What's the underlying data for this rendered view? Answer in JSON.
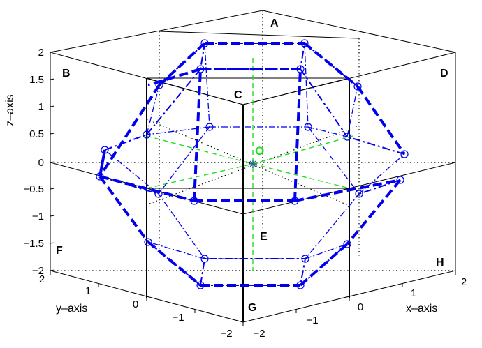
{
  "figure": {
    "axes": {
      "xlabel": "x–axis",
      "ylabel": "y–axis",
      "zlabel": "z–axis",
      "xticks": [
        "−2",
        "−1",
        "0",
        "1",
        "2"
      ],
      "yticks": [
        "−2",
        "−1",
        "0",
        "1",
        "2"
      ],
      "zticks": [
        "−2",
        "−1.5",
        "−1",
        "−0.5",
        "0",
        "0.5",
        "1",
        "1.5",
        "2"
      ]
    },
    "box_labels": [
      "A",
      "B",
      "C",
      "D",
      "E",
      "F",
      "G",
      "H"
    ],
    "origin_label": "O",
    "colors": {
      "polyhedron": "#0000ee",
      "center_lines": "#22dd22",
      "box": "#000000",
      "grid": "#000000"
    }
  }
}
